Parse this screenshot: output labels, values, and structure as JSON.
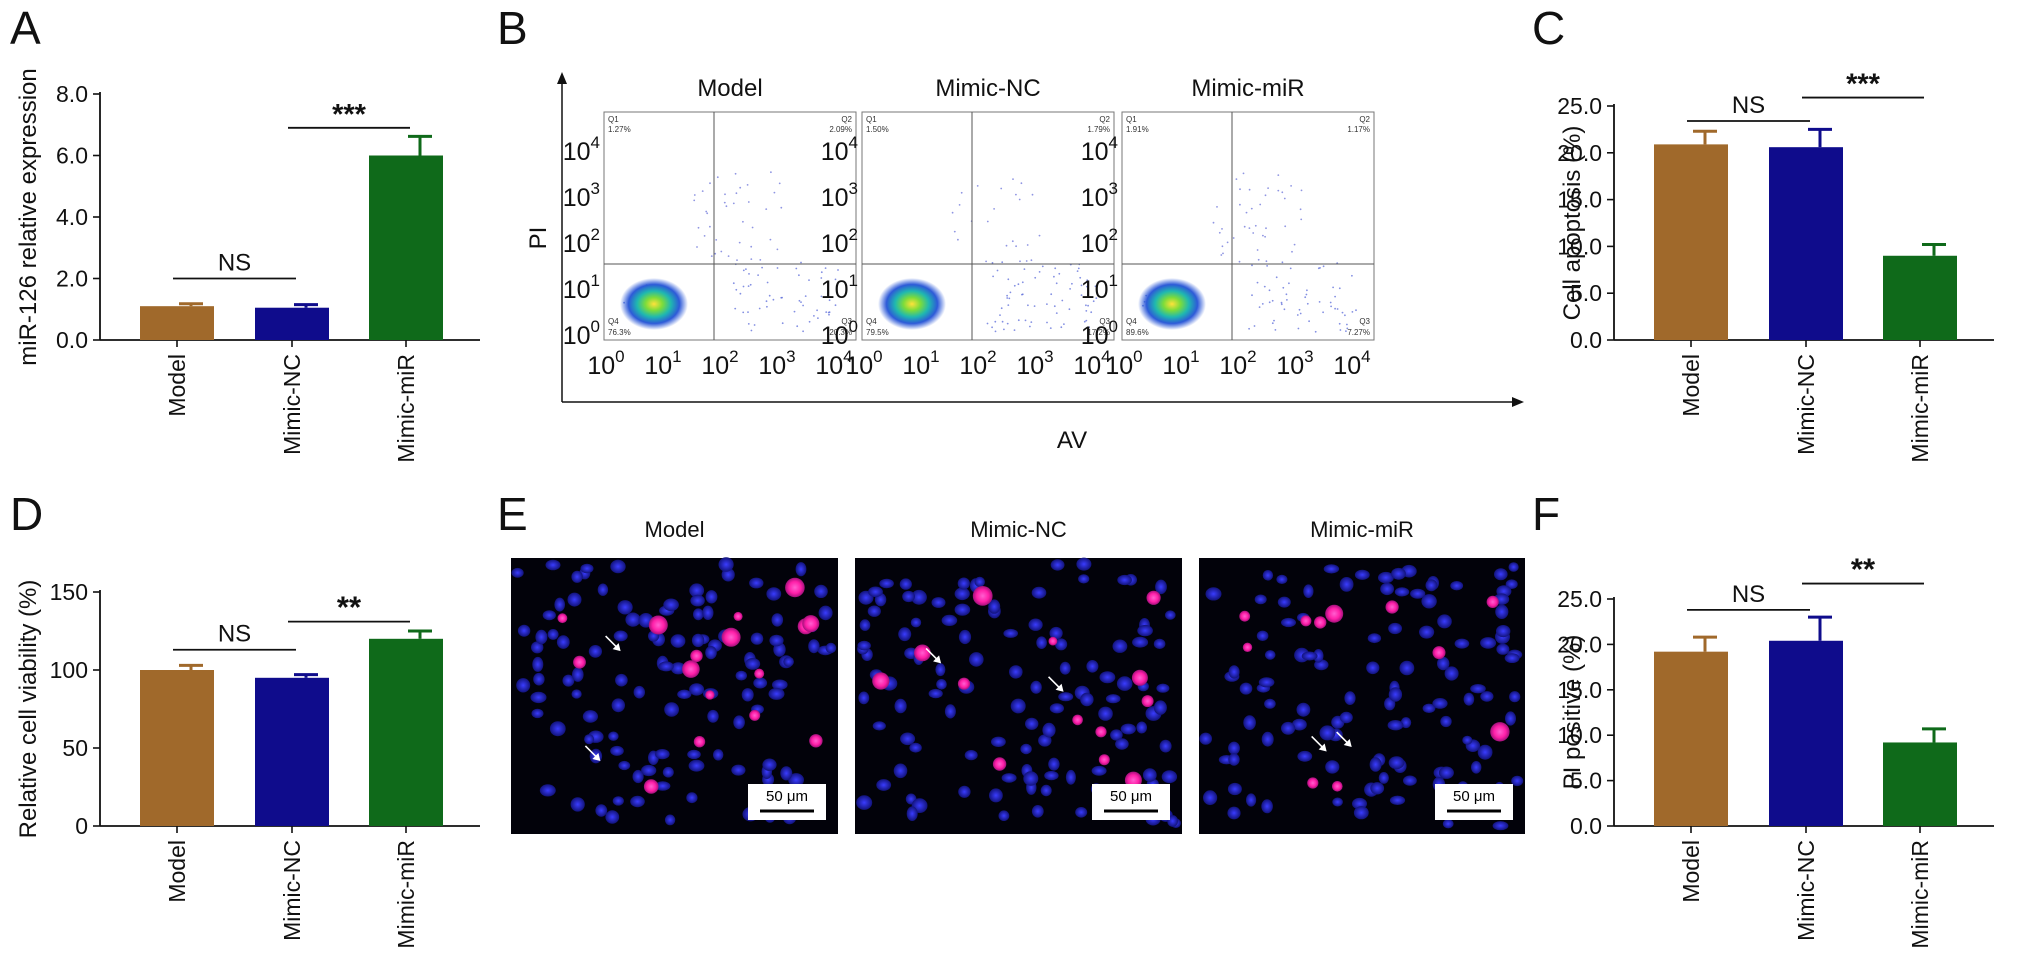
{
  "colors": {
    "model": "#a0692b",
    "mimic_nc": "#0f0c8c",
    "mimic_mir": "#0f6a1a",
    "axis": "#111111"
  },
  "panels": {
    "A": {
      "letter": "A"
    },
    "B": {
      "letter": "B"
    },
    "C": {
      "letter": "C"
    },
    "D": {
      "letter": "D"
    },
    "E": {
      "letter": "E"
    },
    "F": {
      "letter": "F"
    }
  },
  "chart_data": [
    {
      "id": "A",
      "type": "bar",
      "categories": [
        "Model",
        "Mimic-NC",
        "Mimic-miR"
      ],
      "values": [
        1.1,
        1.05,
        6.0
      ],
      "errors": [
        0.08,
        0.1,
        0.62
      ],
      "ylabel": "miR-126 relative expression",
      "ylim": [
        0,
        8.0
      ],
      "yticks": [
        "0.0",
        "2.0",
        "4.0",
        "6.0",
        "8.0"
      ],
      "significance": [
        {
          "between": [
            0,
            1
          ],
          "label": "NS",
          "y": 2.0
        },
        {
          "between": [
            1,
            2
          ],
          "label": "***",
          "y": 6.9
        }
      ]
    },
    {
      "id": "C",
      "type": "bar",
      "categories": [
        "Model",
        "Mimic-NC",
        "Mimic-miR"
      ],
      "values": [
        20.9,
        20.6,
        9.0
      ],
      "errors": [
        1.4,
        1.9,
        1.2
      ],
      "ylabel": "Cell apoptosis (%)",
      "ylim": [
        0,
        25.0
      ],
      "yticks": [
        "0.0",
        "5.0",
        "10.0",
        "15.0",
        "20.0",
        "25.0"
      ],
      "significance": [
        {
          "between": [
            0,
            1
          ],
          "label": "NS",
          "y": 23.4
        },
        {
          "between": [
            1,
            2
          ],
          "label": "***",
          "y": 25.9
        }
      ]
    },
    {
      "id": "D",
      "type": "bar",
      "categories": [
        "Model",
        "Mimic-NC",
        "Mimic-miR"
      ],
      "values": [
        100,
        95,
        120
      ],
      "errors": [
        3,
        2,
        5
      ],
      "ylabel": "Relative cell viability (%)",
      "ylim": [
        0,
        150
      ],
      "yticks": [
        "0",
        "50",
        "100",
        "150"
      ],
      "significance": [
        {
          "between": [
            0,
            1
          ],
          "label": "NS",
          "y": 113
        },
        {
          "between": [
            1,
            2
          ],
          "label": "**",
          "y": 131
        }
      ]
    },
    {
      "id": "F",
      "type": "bar",
      "categories": [
        "Model",
        "Mimic-NC",
        "Mimic-miR"
      ],
      "values": [
        19.2,
        20.4,
        9.2
      ],
      "errors": [
        1.6,
        2.6,
        1.5
      ],
      "ylabel": "PI positive (%)",
      "ylim": [
        0,
        25.0
      ],
      "yticks": [
        "0.0",
        "5.0",
        "10.0",
        "15.0",
        "20.0",
        "25.0"
      ],
      "significance": [
        {
          "between": [
            0,
            1
          ],
          "label": "NS",
          "y": 23.8
        },
        {
          "between": [
            1,
            2
          ],
          "label": "**",
          "y": 26.7
        }
      ]
    },
    {
      "id": "B",
      "type": "scatter",
      "ylabel": "PI",
      "xlabel": "AV",
      "log_scale": true,
      "tick_base": "10",
      "tick_exponents": [
        "0",
        "1",
        "2",
        "3",
        "4"
      ],
      "plots": [
        {
          "title": "Model",
          "quadrants": {
            "Q1": "1.27%",
            "Q2": "2.09%",
            "Q3": "20.3%",
            "Q4": "76.3%"
          }
        },
        {
          "title": "Mimic-NC",
          "quadrants": {
            "Q1": "1.50%",
            "Q2": "1.79%",
            "Q3": "17.2%",
            "Q4": "79.5%"
          }
        },
        {
          "title": "Mimic-miR",
          "quadrants": {
            "Q1": "1.91%",
            "Q2": "1.17%",
            "Q3": "7.27%",
            "Q4": "89.6%"
          }
        }
      ]
    }
  ],
  "microscopy": {
    "images": [
      {
        "title": "Model"
      },
      {
        "title": "Mimic-NC"
      },
      {
        "title": "Mimic-miR"
      }
    ],
    "scale_bar": "50 μm"
  }
}
